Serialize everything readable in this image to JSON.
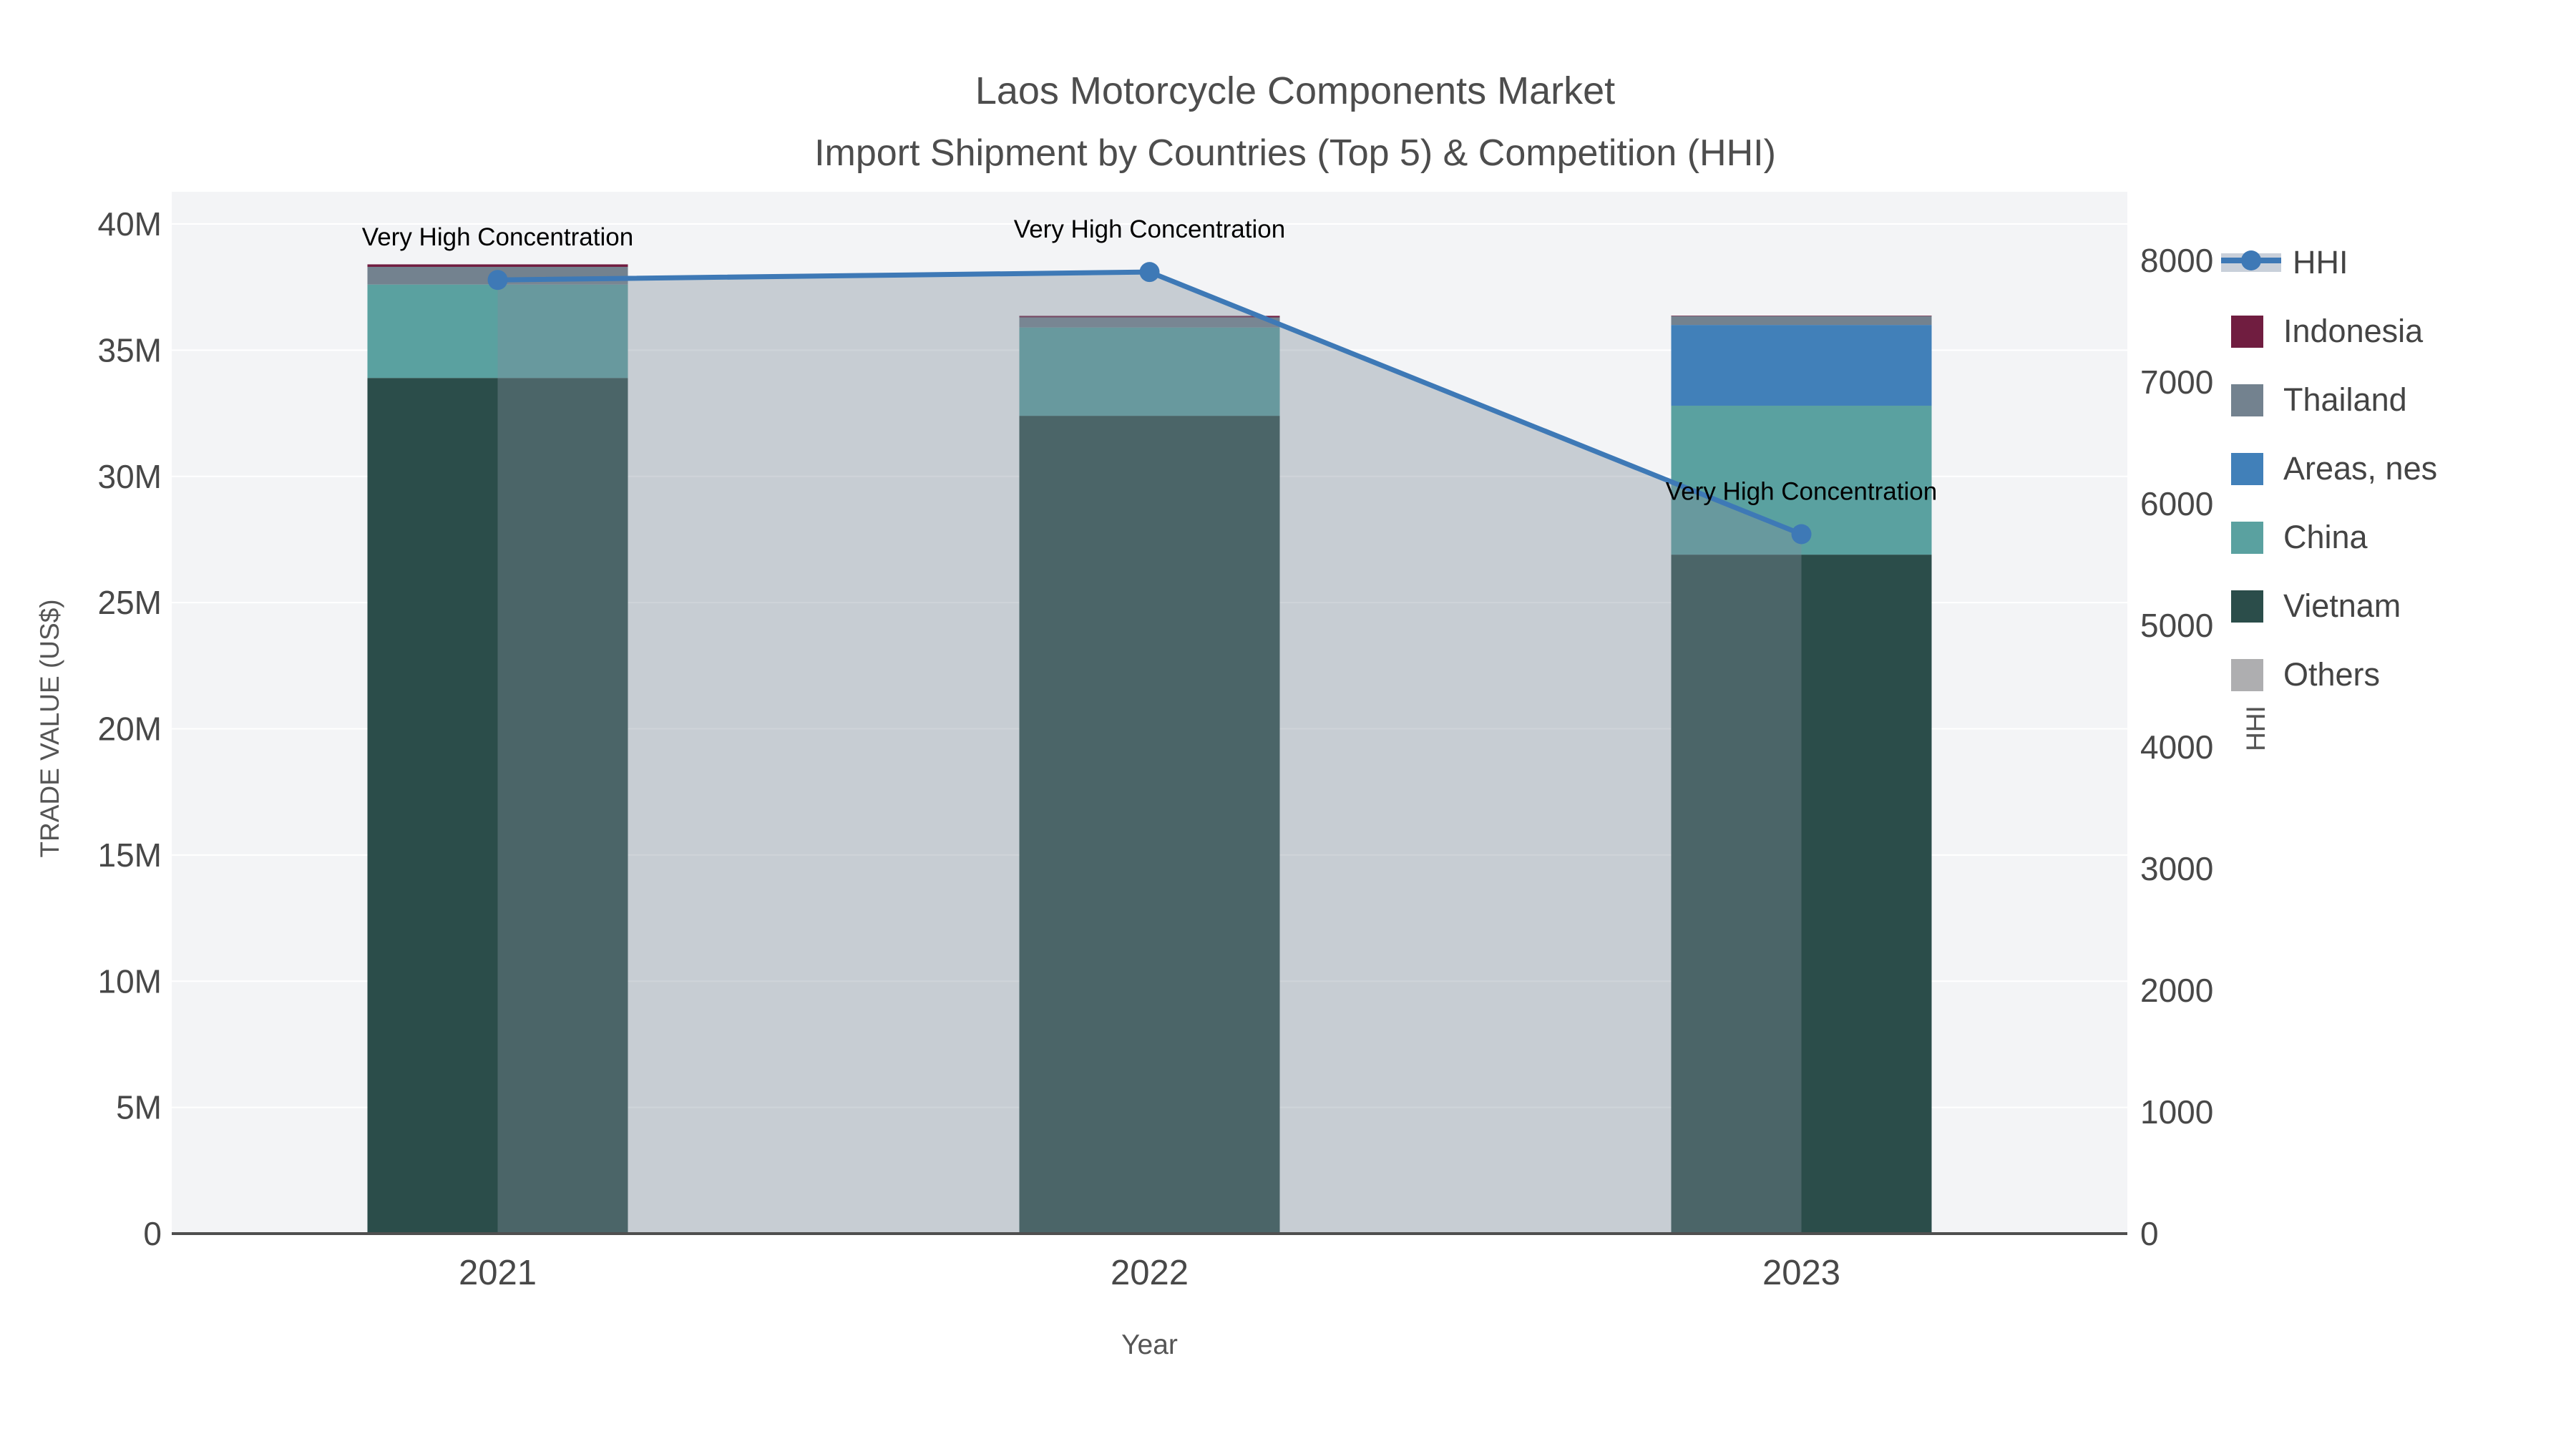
{
  "title": {
    "line1": "Laos Motorcycle Components Market",
    "line2": "Import Shipment by Countries (Top 5) & Competition (HHI)"
  },
  "axes": {
    "x": {
      "title": "Year",
      "ticks": [
        "2021",
        "2022",
        "2023"
      ]
    },
    "y_left": {
      "title": "TRADE VALUE (US$)",
      "ticks": [
        "0",
        "5M",
        "10M",
        "15M",
        "20M",
        "25M",
        "30M",
        "35M",
        "40M"
      ],
      "range_musd": [
        0,
        40
      ]
    },
    "y_right": {
      "title": "HHI",
      "ticks": [
        "0",
        "1000",
        "2000",
        "3000",
        "4000",
        "5000",
        "6000",
        "7000",
        "8000"
      ],
      "range": [
        0,
        8000
      ]
    }
  },
  "legend": [
    {
      "label": "HHI",
      "type": "line",
      "color": "#3e79b6",
      "band_color": "#c9d0da"
    },
    {
      "label": "Indonesia",
      "type": "swatch",
      "color": "#701d40"
    },
    {
      "label": "Thailand",
      "type": "swatch",
      "color": "#73828f"
    },
    {
      "label": "Areas, nes",
      "type": "swatch",
      "color": "#4180b9"
    },
    {
      "label": "China",
      "type": "swatch",
      "color": "#5aa1a0"
    },
    {
      "label": "Vietnam",
      "type": "swatch",
      "color": "#2b4d4a"
    },
    {
      "label": "Others",
      "type": "swatch",
      "color": "#aeaeb0"
    }
  ],
  "chart_data": {
    "type": "bar+line",
    "title": "Laos Motorcycle Components Market — Import Shipment by Countries (Top 5) & Competition (HHI)",
    "categories": [
      "2021",
      "2022",
      "2023"
    ],
    "xlabel": "Year",
    "ylabel_left": "TRADE VALUE (US$)",
    "ylabel_right": "HHI",
    "ylim_left_musd": [
      0,
      40
    ],
    "ylim_right": [
      0,
      8000
    ],
    "grid": "horizontal",
    "legend_position": "right",
    "bar_stack_order_bottom_to_top": [
      "Vietnam",
      "China",
      "Areas, nes",
      "Thailand",
      "Indonesia",
      "Others"
    ],
    "series": [
      {
        "name": "Vietnam",
        "values_musd": [
          33.9,
          32.4,
          26.9
        ],
        "color": "#2b4d4a"
      },
      {
        "name": "China",
        "values_musd": [
          3.7,
          3.5,
          5.9
        ],
        "color": "#5aa1a0"
      },
      {
        "name": "Areas, nes",
        "values_musd": [
          0,
          0,
          3.2
        ],
        "color": "#4180b9"
      },
      {
        "name": "Thailand",
        "values_musd": [
          0.7,
          0.4,
          0.35
        ],
        "color": "#73828f"
      },
      {
        "name": "Indonesia",
        "values_musd": [
          0.1,
          0.06,
          0.02
        ],
        "color": "#701d40"
      },
      {
        "name": "Others",
        "values_musd": [
          0,
          0,
          0
        ],
        "color": "#aeaeb0"
      }
    ],
    "totals_musd": [
      38.4,
      36.36,
      36.37
    ],
    "line": {
      "name": "HHI",
      "values": [
        7840,
        7905,
        5750
      ],
      "color": "#3e79b6",
      "area_fill": "rgba(130,142,155,0.38)"
    },
    "annotations": [
      {
        "category": "2021",
        "text": "Very High Concentration"
      },
      {
        "category": "2022",
        "text": "Very High Concentration"
      },
      {
        "category": "2023",
        "text": "Very High Concentration"
      }
    ]
  }
}
